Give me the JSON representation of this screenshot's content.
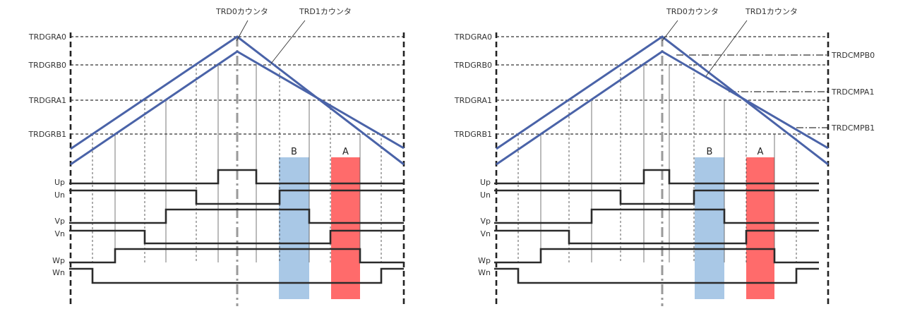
{
  "colors": {
    "counter": "#4a63a8",
    "wave": "#2b2b2b",
    "frame": "#222222",
    "center_line": "#9a9a9a",
    "band_b": "#a9c8e6",
    "band_a": "#ff6b6b",
    "guide": "#333333"
  },
  "panels": [
    {
      "name": "left",
      "counter_labels": [
        "TRD0カウンタ",
        "TRD1カウンタ"
      ],
      "level_labels": [
        "TRDGRA0",
        "TRDGRB0",
        "TRDGRA1",
        "TRDGRB1"
      ],
      "compare_labels": [],
      "signal_labels": [
        "Up",
        "Un",
        "Vp",
        "Vn",
        "Wp",
        "Wn"
      ],
      "band_labels": [
        "B",
        "A"
      ]
    },
    {
      "name": "right",
      "counter_labels": [
        "TRD0カウンタ",
        "TRD1カウンタ"
      ],
      "level_labels": [
        "TRDGRA0",
        "TRDGRB0",
        "TRDGRA1",
        "TRDGRB1"
      ],
      "compare_labels": [
        "TRDCMPB0",
        "TRDCMPA1",
        "TRDCMPB1"
      ],
      "signal_labels": [
        "Up",
        "Un",
        "Vp",
        "Vn",
        "Wp",
        "Wn"
      ],
      "band_labels": [
        "B",
        "A"
      ]
    }
  ]
}
